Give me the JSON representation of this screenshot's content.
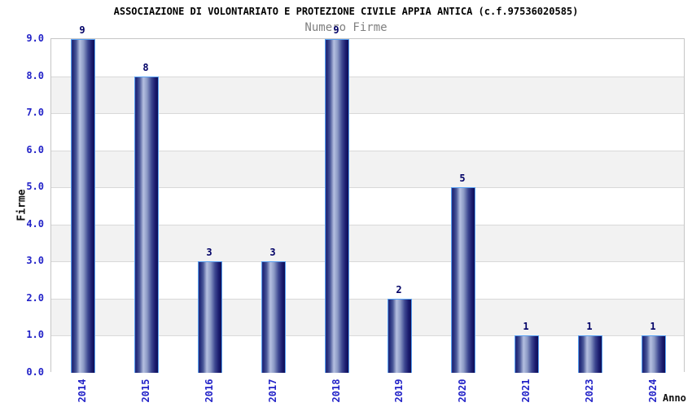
{
  "chart_data": {
    "type": "bar",
    "title": "ASSOCIAZIONE DI VOLONTARIATO E PROTEZIONE CIVILE APPIA ANTICA (c.f.97536020585)",
    "subtitle": "Numero Firme",
    "xlabel": "Anno",
    "ylabel": "Firme",
    "categories": [
      "2014",
      "2015",
      "2016",
      "2017",
      "2018",
      "2019",
      "2020",
      "2021",
      "2023",
      "2024"
    ],
    "values": [
      9,
      8,
      3,
      3,
      9,
      2,
      5,
      1,
      1,
      1
    ],
    "value_labels": [
      "9",
      "8",
      "3",
      "3",
      "9",
      "2",
      "5",
      "1",
      "1",
      "1"
    ],
    "ylim": [
      0,
      9
    ],
    "ytick_step": 1,
    "ytick_labels": [
      "0.0",
      "1.0",
      "2.0",
      "3.0",
      "4.0",
      "5.0",
      "6.0",
      "7.0",
      "8.0",
      "9.0"
    ],
    "grid": true,
    "legend": "none",
    "band_fill_order": "gray-below-odd-gridlines",
    "colors": {
      "title_text": "#000000",
      "subtitle_text": "#808080",
      "axis_tick_text": "#2323c8",
      "bar_value_text": "#000066",
      "bar_border": "#57a0f2",
      "bar_dark": "#0e0e56",
      "bar_light": "#b5c0e0",
      "band_gray": "#f2f2f2",
      "band_white": "#ffffff",
      "gridline": "#d9d9d9",
      "plot_border": "#c6c6c6"
    }
  }
}
